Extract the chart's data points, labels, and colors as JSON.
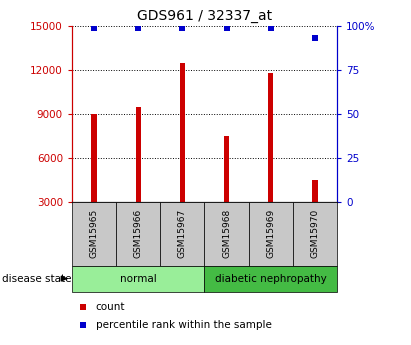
{
  "title": "GDS961 / 32337_at",
  "samples": [
    "GSM15965",
    "GSM15966",
    "GSM15967",
    "GSM15968",
    "GSM15969",
    "GSM15970"
  ],
  "counts": [
    9000,
    9500,
    12500,
    7500,
    11800,
    4500
  ],
  "percentiles": [
    99,
    99,
    99,
    99,
    99,
    93
  ],
  "ylim_left": [
    3000,
    15000
  ],
  "ylim_right": [
    0,
    100
  ],
  "yticks_left": [
    3000,
    6000,
    9000,
    12000,
    15000
  ],
  "yticks_right": [
    0,
    25,
    50,
    75,
    100
  ],
  "bar_color": "#cc0000",
  "dot_color": "#0000cc",
  "grid_color": "#000000",
  "bar_width": 0.12,
  "groups": [
    {
      "label": "normal",
      "indices": [
        0,
        1,
        2
      ],
      "color": "#99ee99"
    },
    {
      "label": "diabetic nephropathy",
      "indices": [
        3,
        4,
        5
      ],
      "color": "#44bb44"
    }
  ],
  "group_label": "disease state",
  "legend_count_label": "count",
  "legend_percentile_label": "percentile rank within the sample",
  "background_color": "#ffffff",
  "plot_bg_color": "#ffffff",
  "label_box_color": "#c8c8c8",
  "title_fontsize": 10,
  "tick_fontsize": 7.5,
  "left_tick_color": "#cc0000",
  "right_tick_color": "#0000cc"
}
